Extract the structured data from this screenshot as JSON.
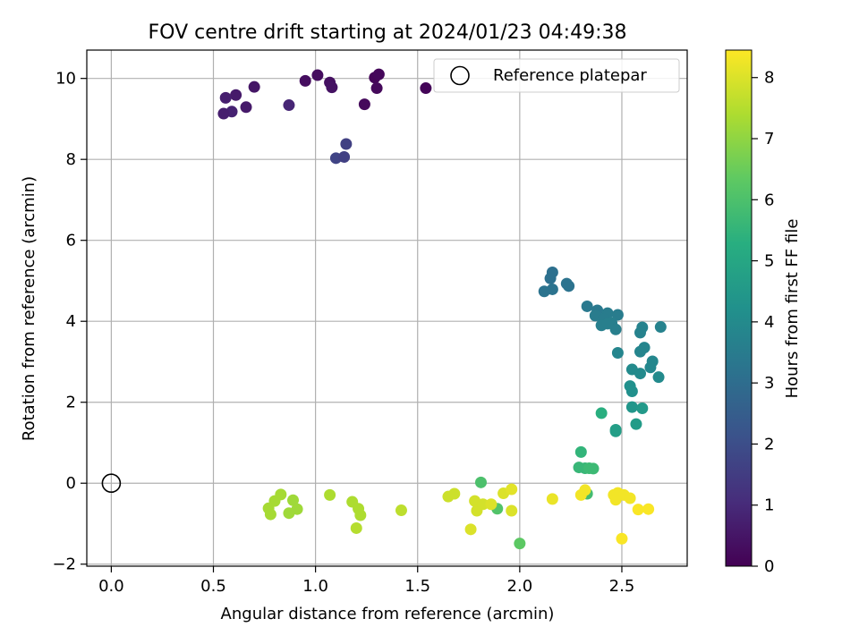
{
  "chart_data": {
    "type": "scatter",
    "title": "FOV centre drift starting at 2024/01/23 04:49:38",
    "xlabel": "Angular distance from reference (arcmin)",
    "ylabel": "Rotation from reference (arcmin)",
    "xlim": [
      -0.12,
      2.82
    ],
    "ylim": [
      -2.05,
      10.7
    ],
    "xticks": [
      "0.0",
      "0.5",
      "1.0",
      "1.5",
      "2.0",
      "2.5"
    ],
    "yticks": [
      "−2",
      "0",
      "2",
      "4",
      "6",
      "8",
      "10"
    ],
    "grid": true,
    "legend": {
      "location": "top-right",
      "entries": [
        "Reference platepar"
      ]
    },
    "reference_point": {
      "x": 0.0,
      "y": 0.0
    },
    "colorbar": {
      "label": "Hours from first FF file",
      "colormap": "viridis",
      "range": [
        0,
        8.45
      ],
      "ticks": [
        "0",
        "1",
        "2",
        "3",
        "4",
        "5",
        "6",
        "7",
        "8"
      ]
    },
    "points": [
      {
        "x": 1.29,
        "y": 10.02,
        "c": 0.1
      },
      {
        "x": 1.31,
        "y": 10.1,
        "c": 0.15
      },
      {
        "x": 1.54,
        "y": 9.76,
        "c": 0.1
      },
      {
        "x": 1.3,
        "y": 9.76,
        "c": 0.2
      },
      {
        "x": 1.24,
        "y": 9.36,
        "c": 0.2
      },
      {
        "x": 1.01,
        "y": 10.08,
        "c": 0.3
      },
      {
        "x": 1.07,
        "y": 9.9,
        "c": 0.35
      },
      {
        "x": 0.95,
        "y": 9.94,
        "c": 0.3
      },
      {
        "x": 1.08,
        "y": 9.78,
        "c": 0.4
      },
      {
        "x": 0.7,
        "y": 9.79,
        "c": 0.5
      },
      {
        "x": 0.61,
        "y": 9.59,
        "c": 0.6
      },
      {
        "x": 0.56,
        "y": 9.52,
        "c": 0.7
      },
      {
        "x": 0.66,
        "y": 9.29,
        "c": 0.6
      },
      {
        "x": 0.59,
        "y": 9.18,
        "c": 0.8
      },
      {
        "x": 0.55,
        "y": 9.13,
        "c": 0.7
      },
      {
        "x": 0.87,
        "y": 9.34,
        "c": 0.9
      },
      {
        "x": 1.15,
        "y": 8.38,
        "c": 1.6
      },
      {
        "x": 1.1,
        "y": 8.03,
        "c": 1.7
      },
      {
        "x": 1.14,
        "y": 8.06,
        "c": 1.6
      },
      {
        "x": 2.16,
        "y": 5.21,
        "c": 3.1
      },
      {
        "x": 2.15,
        "y": 5.06,
        "c": 3.1
      },
      {
        "x": 2.23,
        "y": 4.93,
        "c": 3.2
      },
      {
        "x": 2.24,
        "y": 4.87,
        "c": 3.2
      },
      {
        "x": 2.12,
        "y": 4.74,
        "c": 3.2
      },
      {
        "x": 2.16,
        "y": 4.79,
        "c": 3.2
      },
      {
        "x": 2.33,
        "y": 4.37,
        "c": 3.4
      },
      {
        "x": 2.38,
        "y": 4.27,
        "c": 3.4
      },
      {
        "x": 2.43,
        "y": 4.2,
        "c": 3.5
      },
      {
        "x": 2.48,
        "y": 4.16,
        "c": 3.5
      },
      {
        "x": 2.37,
        "y": 4.14,
        "c": 3.5
      },
      {
        "x": 2.41,
        "y": 4.05,
        "c": 3.5
      },
      {
        "x": 2.45,
        "y": 3.96,
        "c": 3.6
      },
      {
        "x": 2.4,
        "y": 3.9,
        "c": 3.6
      },
      {
        "x": 2.43,
        "y": 3.94,
        "c": 3.6
      },
      {
        "x": 2.47,
        "y": 3.8,
        "c": 3.6
      },
      {
        "x": 2.6,
        "y": 3.85,
        "c": 3.7
      },
      {
        "x": 2.69,
        "y": 3.86,
        "c": 3.7
      },
      {
        "x": 2.59,
        "y": 3.72,
        "c": 3.7
      },
      {
        "x": 2.61,
        "y": 3.35,
        "c": 3.8
      },
      {
        "x": 2.59,
        "y": 3.25,
        "c": 3.8
      },
      {
        "x": 2.48,
        "y": 3.22,
        "c": 3.8
      },
      {
        "x": 2.65,
        "y": 3.01,
        "c": 3.9
      },
      {
        "x": 2.64,
        "y": 2.86,
        "c": 3.9
      },
      {
        "x": 2.55,
        "y": 2.81,
        "c": 4.0
      },
      {
        "x": 2.59,
        "y": 2.71,
        "c": 4.0
      },
      {
        "x": 2.68,
        "y": 2.62,
        "c": 4.0
      },
      {
        "x": 2.54,
        "y": 2.4,
        "c": 4.2
      },
      {
        "x": 2.55,
        "y": 2.27,
        "c": 4.2
      },
      {
        "x": 2.55,
        "y": 1.88,
        "c": 4.4
      },
      {
        "x": 2.6,
        "y": 1.85,
        "c": 4.5
      },
      {
        "x": 2.4,
        "y": 1.73,
        "c": 5.3
      },
      {
        "x": 2.57,
        "y": 1.46,
        "c": 4.6
      },
      {
        "x": 2.47,
        "y": 1.32,
        "c": 4.7
      },
      {
        "x": 2.47,
        "y": 1.28,
        "c": 4.7
      },
      {
        "x": 2.3,
        "y": 0.77,
        "c": 5.5
      },
      {
        "x": 2.29,
        "y": 0.39,
        "c": 5.6
      },
      {
        "x": 2.32,
        "y": 0.37,
        "c": 5.6
      },
      {
        "x": 2.34,
        "y": 0.37,
        "c": 5.7
      },
      {
        "x": 2.36,
        "y": 0.36,
        "c": 5.7
      },
      {
        "x": 1.81,
        "y": 0.02,
        "c": 6.0
      },
      {
        "x": 2.33,
        "y": -0.26,
        "c": 5.8
      },
      {
        "x": 1.89,
        "y": -0.63,
        "c": 6.1
      },
      {
        "x": 2.0,
        "y": -1.49,
        "c": 6.3
      },
      {
        "x": 0.89,
        "y": -0.42,
        "c": 7.2
      },
      {
        "x": 0.91,
        "y": -0.64,
        "c": 7.2
      },
      {
        "x": 0.87,
        "y": -0.74,
        "c": 7.2
      },
      {
        "x": 0.83,
        "y": -0.28,
        "c": 7.3
      },
      {
        "x": 0.8,
        "y": -0.44,
        "c": 7.3
      },
      {
        "x": 0.77,
        "y": -0.62,
        "c": 7.3
      },
      {
        "x": 0.78,
        "y": -0.77,
        "c": 7.3
      },
      {
        "x": 1.07,
        "y": -0.29,
        "c": 7.4
      },
      {
        "x": 1.18,
        "y": -0.46,
        "c": 7.4
      },
      {
        "x": 1.21,
        "y": -0.63,
        "c": 7.4
      },
      {
        "x": 1.22,
        "y": -0.79,
        "c": 7.4
      },
      {
        "x": 1.2,
        "y": -1.11,
        "c": 7.5
      },
      {
        "x": 1.42,
        "y": -0.67,
        "c": 7.6
      },
      {
        "x": 1.65,
        "y": -0.33,
        "c": 7.8
      },
      {
        "x": 1.68,
        "y": -0.26,
        "c": 7.8
      },
      {
        "x": 1.78,
        "y": -0.44,
        "c": 7.9
      },
      {
        "x": 1.79,
        "y": -0.68,
        "c": 7.9
      },
      {
        "x": 1.82,
        "y": -0.52,
        "c": 7.9
      },
      {
        "x": 1.86,
        "y": -0.52,
        "c": 8.0
      },
      {
        "x": 1.92,
        "y": -0.25,
        "c": 8.0
      },
      {
        "x": 1.96,
        "y": -0.15,
        "c": 8.1
      },
      {
        "x": 1.96,
        "y": -0.68,
        "c": 8.0
      },
      {
        "x": 1.76,
        "y": -1.14,
        "c": 8.0
      },
      {
        "x": 2.16,
        "y": -0.39,
        "c": 8.2
      },
      {
        "x": 2.3,
        "y": -0.29,
        "c": 8.3
      },
      {
        "x": 2.32,
        "y": -0.17,
        "c": 8.3
      },
      {
        "x": 2.46,
        "y": -0.29,
        "c": 8.3
      },
      {
        "x": 2.48,
        "y": -0.24,
        "c": 8.3
      },
      {
        "x": 2.51,
        "y": -0.29,
        "c": 8.3
      },
      {
        "x": 2.47,
        "y": -0.41,
        "c": 8.3
      },
      {
        "x": 2.54,
        "y": -0.37,
        "c": 8.3
      },
      {
        "x": 2.58,
        "y": -0.65,
        "c": 8.4
      },
      {
        "x": 2.63,
        "y": -0.64,
        "c": 8.4
      },
      {
        "x": 2.5,
        "y": -1.37,
        "c": 8.4
      }
    ]
  }
}
